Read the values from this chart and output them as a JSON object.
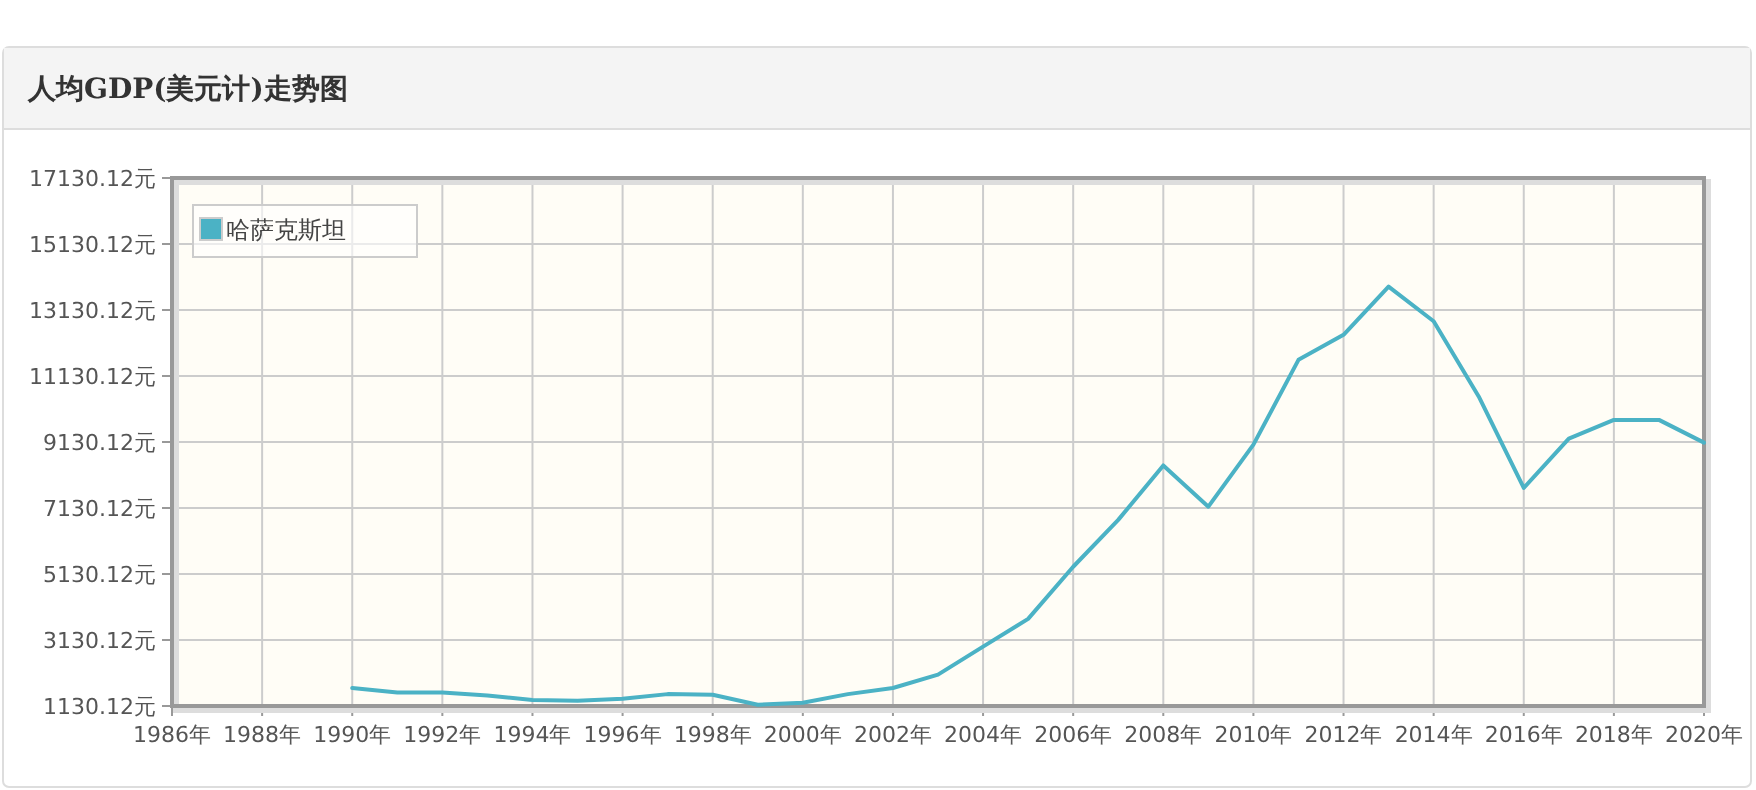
{
  "chart_data": {
    "type": "line",
    "title": "人均GDP(美元计)走势图",
    "x": [
      1990,
      1991,
      1992,
      1993,
      1994,
      1995,
      1996,
      1997,
      1998,
      1999,
      2000,
      2001,
      2002,
      2003,
      2004,
      2005,
      2006,
      2007,
      2008,
      2009,
      2010,
      2011,
      2012,
      2013,
      2014,
      2015,
      2016,
      2017,
      2018,
      2019,
      2020
    ],
    "series": [
      {
        "name": "哈萨克斯坦",
        "color": "#4bb2c5",
        "values": [
          1675,
          1536,
          1536,
          1450,
          1312,
          1290,
          1350,
          1490,
          1470,
          1170,
          1230,
          1490,
          1675,
          2080,
          2930,
          3770,
          5350,
          6770,
          8420,
          7170,
          9050,
          11620,
          12380,
          13840,
          12790,
          10510,
          7740,
          9230,
          9800,
          9800,
          9110
        ]
      }
    ],
    "xlim": [
      1986,
      2020
    ],
    "xticks": [
      {
        "value": 1986,
        "label": "1986年"
      },
      {
        "value": 1988,
        "label": "1988年"
      },
      {
        "value": 1990,
        "label": "1990年"
      },
      {
        "value": 1992,
        "label": "1992年"
      },
      {
        "value": 1994,
        "label": "1994年"
      },
      {
        "value": 1996,
        "label": "1996年"
      },
      {
        "value": 1998,
        "label": "1998年"
      },
      {
        "value": 2000,
        "label": "2000年"
      },
      {
        "value": 2002,
        "label": "2002年"
      },
      {
        "value": 2004,
        "label": "2004年"
      },
      {
        "value": 2006,
        "label": "2006年"
      },
      {
        "value": 2008,
        "label": "2008年"
      },
      {
        "value": 2010,
        "label": "2010年"
      },
      {
        "value": 2012,
        "label": "2012年"
      },
      {
        "value": 2014,
        "label": "2014年"
      },
      {
        "value": 2016,
        "label": "2016年"
      },
      {
        "value": 2018,
        "label": "2018年"
      },
      {
        "value": 2020,
        "label": "2020年"
      }
    ],
    "ylim": [
      1130.12,
      17130.12
    ],
    "yticks": [
      {
        "value": 1130.12,
        "label": "1130.12元"
      },
      {
        "value": 3130.12,
        "label": "3130.12元"
      },
      {
        "value": 5130.12,
        "label": "5130.12元"
      },
      {
        "value": 7130.12,
        "label": "7130.12元"
      },
      {
        "value": 9130.12,
        "label": "9130.12元"
      },
      {
        "value": 11130.12,
        "label": "11130.12元"
      },
      {
        "value": 13130.12,
        "label": "13130.12元"
      },
      {
        "value": 15130.12,
        "label": "15130.12元"
      },
      {
        "value": 17130.12,
        "label": "17130.12元"
      }
    ],
    "grid": true,
    "legend": "top left",
    "marker": "none",
    "line_style": "solid"
  }
}
